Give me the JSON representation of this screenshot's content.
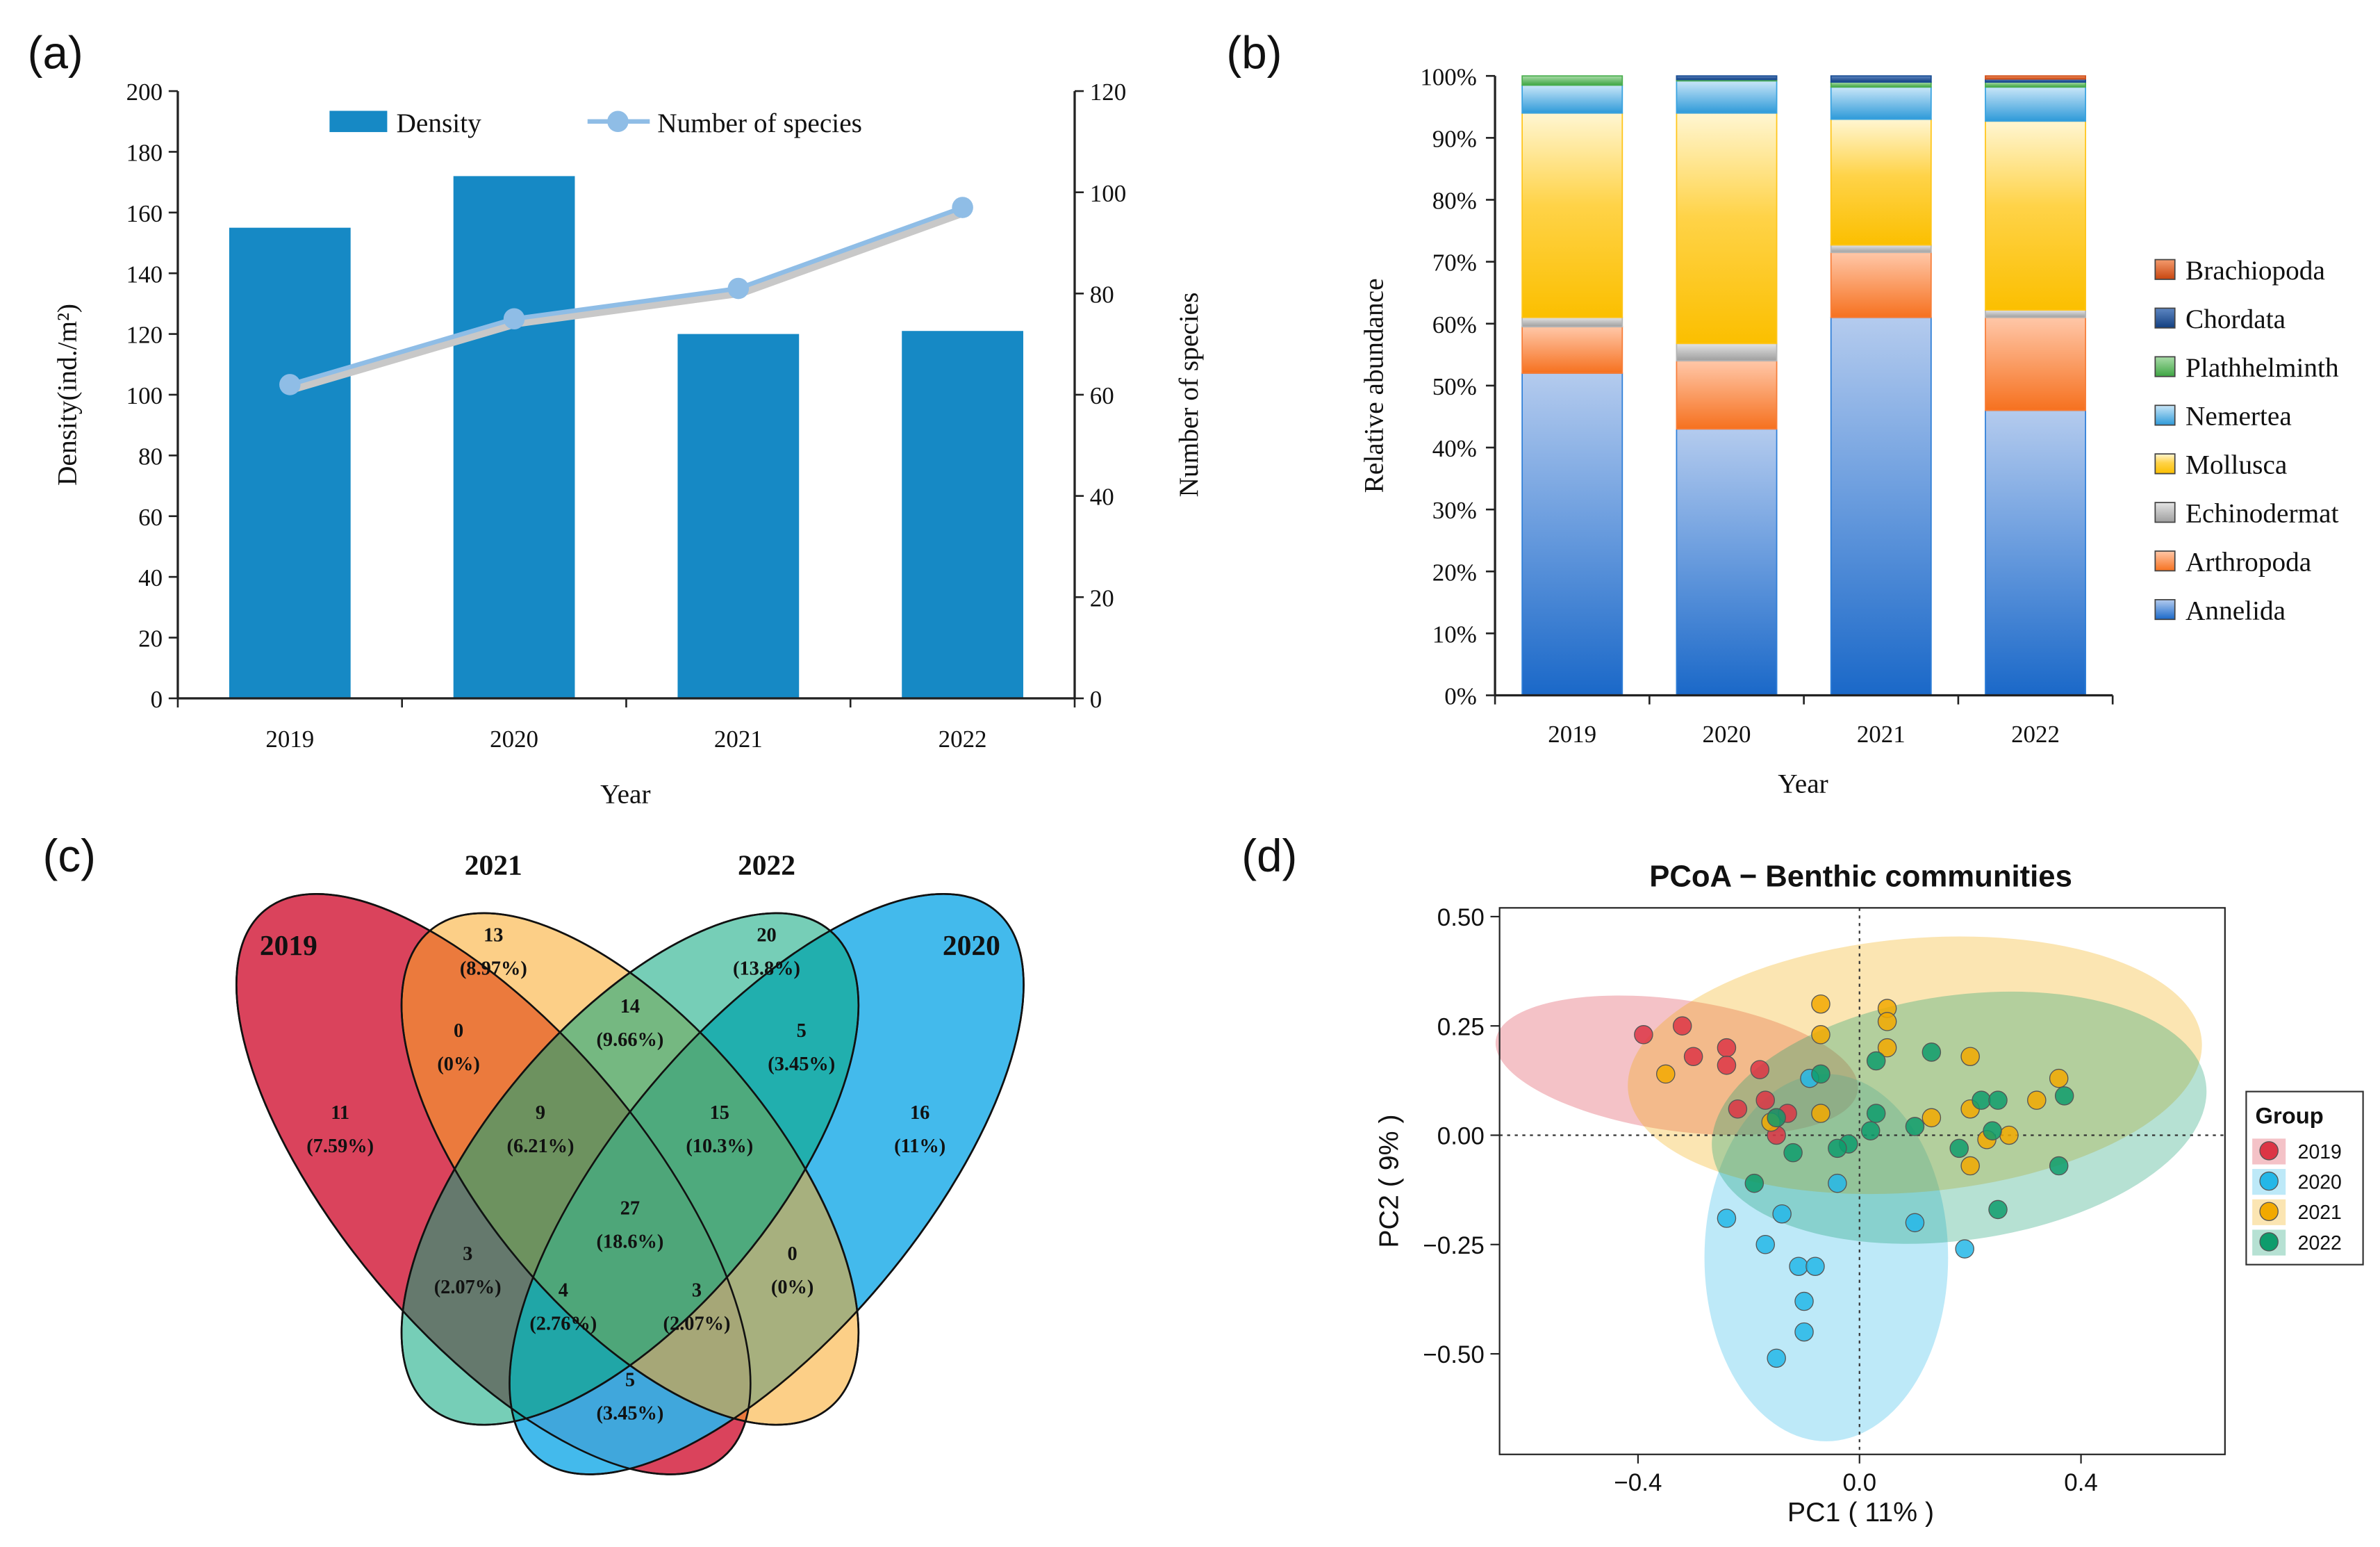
{
  "panel_labels": {
    "a": "(a)",
    "b": "(b)",
    "c": "(c)",
    "d": "(d)"
  },
  "chart_data": [
    {
      "id": "a",
      "type": "bar",
      "categories": [
        "2019",
        "2020",
        "2021",
        "2022"
      ],
      "series": [
        {
          "name": "Density",
          "axis": "left",
          "kind": "bar",
          "values": [
            155,
            172,
            120,
            121
          ],
          "color": "#1689c5"
        },
        {
          "name": "Number of species",
          "axis": "right",
          "kind": "line",
          "values": [
            62,
            75,
            81,
            97
          ],
          "color": "#8fbde6"
        }
      ],
      "xlabel": "Year",
      "ylabel": "Density(ind./m²)",
      "y2label": "Number of species",
      "ylim": [
        0,
        200
      ],
      "y2lim": [
        0,
        120
      ],
      "yticks": [
        "0",
        "20",
        "40",
        "60",
        "80",
        "100",
        "120",
        "140",
        "160",
        "180",
        "200"
      ],
      "y2ticks": [
        "0",
        "20",
        "40",
        "60",
        "80",
        "100",
        "120"
      ]
    },
    {
      "id": "b",
      "type": "bar",
      "stacked": true,
      "categories": [
        "2019",
        "2020",
        "2021",
        "2022"
      ],
      "series": [
        {
          "name": "Annelida",
          "values": [
            52,
            43,
            61,
            46
          ],
          "color": "#2f7fd8"
        },
        {
          "name": "Arthropoda",
          "values": [
            7.5,
            11,
            10.5,
            15
          ],
          "color": "#f77e3a"
        },
        {
          "name": "Echinodermat",
          "values": [
            1.5,
            2.8,
            1.2,
            1.2
          ],
          "color": "#b5b5b5"
        },
        {
          "name": "Mollusca",
          "values": [
            33,
            37.2,
            20.3,
            30.5
          ],
          "color": "#ffc51a"
        },
        {
          "name": "Nemertea",
          "values": [
            4.5,
            5.2,
            5.2,
            5.5
          ],
          "color": "#3aa3e0"
        },
        {
          "name": "Plathhelminth",
          "values": [
            1.5,
            0.2,
            0.8,
            0.8
          ],
          "color": "#4caf50"
        },
        {
          "name": "Chordata",
          "values": [
            0,
            0.6,
            1.0,
            0.5
          ],
          "color": "#1a4e94"
        },
        {
          "name": "Brachiopoda",
          "values": [
            0,
            0,
            0,
            0.5
          ],
          "color": "#d2521c"
        }
      ],
      "xlabel": "Year",
      "ylabel": "Relative abundance",
      "ylim": [
        0,
        100
      ],
      "yticks": [
        "0%",
        "10%",
        "20%",
        "30%",
        "40%",
        "50%",
        "60%",
        "70%",
        "80%",
        "90%",
        "100%"
      ],
      "legend_order": [
        "Brachiopoda",
        "Chordata",
        "Plathhelminth",
        "Nemertea",
        "Mollusca",
        "Echinodermat",
        "Arthropoda",
        "Annelida"
      ]
    },
    {
      "id": "c",
      "type": "venn",
      "sets": [
        {
          "name": "2019",
          "color": "#d62f4a"
        },
        {
          "name": "2021",
          "color": "#f9a725"
        },
        {
          "name": "2022",
          "color": "#06a57b"
        },
        {
          "name": "2020",
          "color": "#2fb3ea"
        }
      ],
      "regions": [
        {
          "sets": "2019",
          "count": "11",
          "pct": "(7.59%)"
        },
        {
          "sets": "2021",
          "count": "13",
          "pct": "(8.97%)"
        },
        {
          "sets": "2022",
          "count": "20",
          "pct": "(13.8%)"
        },
        {
          "sets": "2020",
          "count": "16",
          "pct": "(11%)"
        },
        {
          "sets": "2019&2021",
          "count": "0",
          "pct": "(0%)"
        },
        {
          "sets": "2021&2022",
          "count": "14",
          "pct": "(9.66%)"
        },
        {
          "sets": "2022&2020",
          "count": "5",
          "pct": "(3.45%)"
        },
        {
          "sets": "2019&2021&2022",
          "count": "9",
          "pct": "(6.21%)"
        },
        {
          "sets": "2021&2022&2020",
          "count": "15",
          "pct": "(10.3%)"
        },
        {
          "sets": "all",
          "count": "27",
          "pct": "(18.6%)"
        },
        {
          "sets": "2019&2022",
          "count": "3",
          "pct": "(2.07%)"
        },
        {
          "sets": "2021&2020",
          "count": "0",
          "pct": "(0%)"
        },
        {
          "sets": "2019&2022&2020",
          "count": "4",
          "pct": "(2.76%)"
        },
        {
          "sets": "2019&2021&2020",
          "count": "3",
          "pct": "(2.07%)"
        },
        {
          "sets": "2019&2020",
          "count": "5",
          "pct": "(3.45%)"
        }
      ]
    },
    {
      "id": "d",
      "type": "scatter",
      "title": "PCoA − Benthic communities",
      "xlabel": "PC1 ( 11% )",
      "ylabel": "PC2 ( 9% )",
      "xlim": [
        -0.65,
        0.66
      ],
      "ylim": [
        -0.73,
        0.52
      ],
      "xticks": [
        "−0.4",
        "0.0",
        "0.4"
      ],
      "xtick_values": [
        -0.4,
        0.0,
        0.4
      ],
      "yticks": [
        "0.50",
        "0.25",
        "0.00",
        "−0.25",
        "−0.50"
      ],
      "ytick_values": [
        0.5,
        0.25,
        0.0,
        -0.25,
        -0.5
      ],
      "legend_title": "Group",
      "ellipses": [
        {
          "group": "2019",
          "cx": -0.33,
          "cy": 0.16,
          "rx": 0.33,
          "ry": 0.15,
          "rot": 8
        },
        {
          "group": "2020",
          "cx": -0.06,
          "cy": -0.28,
          "rx": 0.22,
          "ry": 0.42,
          "rot": 0
        },
        {
          "group": "2021",
          "cx": 0.1,
          "cy": 0.16,
          "rx": 0.52,
          "ry": 0.29,
          "rot": -5
        },
        {
          "group": "2022",
          "cx": 0.18,
          "cy": 0.04,
          "rx": 0.45,
          "ry": 0.28,
          "rot": -8
        }
      ],
      "series": [
        {
          "name": "2019",
          "color": "#dc3545",
          "points": [
            [
              -0.39,
              0.23
            ],
            [
              -0.32,
              0.25
            ],
            [
              -0.3,
              0.18
            ],
            [
              -0.24,
              0.2
            ],
            [
              -0.24,
              0.16
            ],
            [
              -0.22,
              0.06
            ],
            [
              -0.17,
              0.08
            ],
            [
              -0.15,
              0.04
            ],
            [
              -0.18,
              0.15
            ],
            [
              -0.13,
              0.05
            ],
            [
              -0.15,
              0.0
            ]
          ]
        },
        {
          "name": "2020",
          "color": "#24b7e8",
          "points": [
            [
              -0.24,
              -0.19
            ],
            [
              -0.17,
              -0.25
            ],
            [
              -0.14,
              -0.18
            ],
            [
              -0.11,
              -0.3
            ],
            [
              -0.08,
              -0.3
            ],
            [
              -0.1,
              -0.38
            ],
            [
              -0.1,
              -0.45
            ],
            [
              -0.15,
              -0.51
            ],
            [
              -0.04,
              -0.11
            ],
            [
              0.1,
              -0.2
            ],
            [
              0.19,
              -0.26
            ],
            [
              -0.09,
              0.13
            ]
          ]
        },
        {
          "name": "2021",
          "color": "#f2a900",
          "points": [
            [
              -0.35,
              0.14
            ],
            [
              -0.07,
              0.3
            ],
            [
              -0.07,
              0.23
            ],
            [
              0.05,
              0.29
            ],
            [
              0.05,
              0.26
            ],
            [
              0.05,
              0.2
            ],
            [
              0.2,
              0.18
            ],
            [
              0.2,
              0.06
            ],
            [
              0.23,
              -0.01
            ],
            [
              0.27,
              0.0
            ],
            [
              0.32,
              0.08
            ],
            [
              0.36,
              0.13
            ],
            [
              -0.16,
              0.03
            ],
            [
              -0.07,
              0.05
            ],
            [
              0.13,
              0.04
            ],
            [
              0.2,
              -0.07
            ]
          ]
        },
        {
          "name": "2022",
          "color": "#0e9c6c",
          "points": [
            [
              0.03,
              0.17
            ],
            [
              0.13,
              0.19
            ],
            [
              0.03,
              0.05
            ],
            [
              0.02,
              0.01
            ],
            [
              0.22,
              0.08
            ],
            [
              0.25,
              0.08
            ],
            [
              0.24,
              0.01
            ],
            [
              0.37,
              0.09
            ],
            [
              0.36,
              -0.07
            ],
            [
              0.25,
              -0.17
            ],
            [
              0.18,
              -0.03
            ],
            [
              -0.02,
              -0.02
            ],
            [
              -0.12,
              -0.04
            ],
            [
              -0.19,
              -0.11
            ],
            [
              -0.15,
              0.04
            ],
            [
              -0.07,
              0.14
            ],
            [
              -0.04,
              -0.03
            ],
            [
              0.1,
              0.02
            ]
          ]
        }
      ]
    }
  ]
}
